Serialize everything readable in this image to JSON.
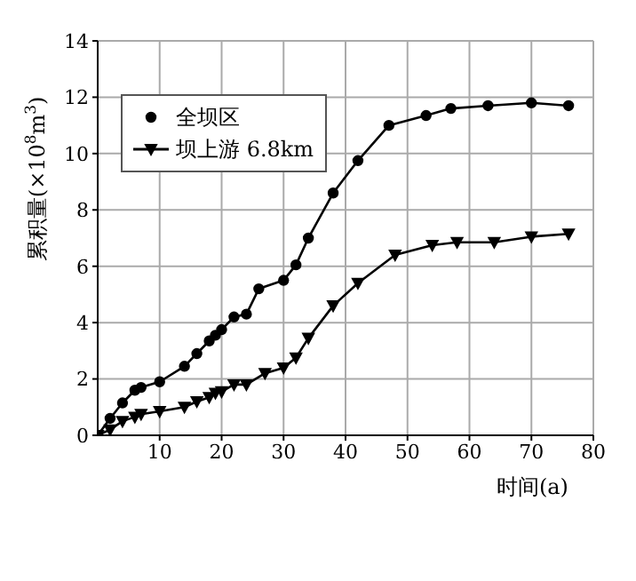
{
  "chart_data": {
    "type": "line",
    "xlabel": "时间(a)",
    "ylabel": "累积量(×10$^{8}$m$^{3}$)",
    "xlim": [
      0,
      80
    ],
    "xticks": [
      10,
      20,
      30,
      40,
      50,
      60,
      70,
      80
    ],
    "ylim": [
      0,
      14
    ],
    "yticks": [
      0,
      2,
      4,
      6,
      8,
      10,
      12,
      14
    ],
    "grid": true,
    "legend": "top left",
    "series": [
      {
        "name": "全坝区",
        "color": "#000000",
        "marker": "circle",
        "x": [
          0,
          2,
          4,
          6,
          7,
          10,
          14,
          16,
          18,
          19,
          20,
          22,
          24,
          26,
          30,
          32,
          34,
          38,
          42,
          47,
          53,
          57,
          63,
          70,
          76
        ],
        "values": [
          0,
          0.6,
          1.15,
          1.6,
          1.7,
          1.9,
          2.45,
          2.9,
          3.35,
          3.55,
          3.75,
          4.2,
          4.3,
          5.2,
          5.5,
          6.05,
          7.0,
          8.6,
          9.75,
          11.0,
          11.35,
          11.6,
          11.7,
          11.8,
          11.7
        ]
      },
      {
        "name": "坝上游 6.8km",
        "color": "#000000",
        "marker": "triangle",
        "x": [
          0,
          2,
          4,
          6,
          7,
          10,
          14,
          16,
          18,
          19,
          20,
          22,
          24,
          27,
          30,
          32,
          34,
          38,
          42,
          48,
          54,
          58,
          64,
          70,
          76
        ],
        "values": [
          0,
          0.2,
          0.5,
          0.65,
          0.75,
          0.85,
          1.0,
          1.2,
          1.35,
          1.5,
          1.55,
          1.8,
          1.8,
          2.2,
          2.4,
          2.75,
          3.45,
          4.6,
          5.4,
          6.4,
          6.75,
          6.85,
          6.85,
          7.05,
          7.15
        ]
      }
    ]
  }
}
